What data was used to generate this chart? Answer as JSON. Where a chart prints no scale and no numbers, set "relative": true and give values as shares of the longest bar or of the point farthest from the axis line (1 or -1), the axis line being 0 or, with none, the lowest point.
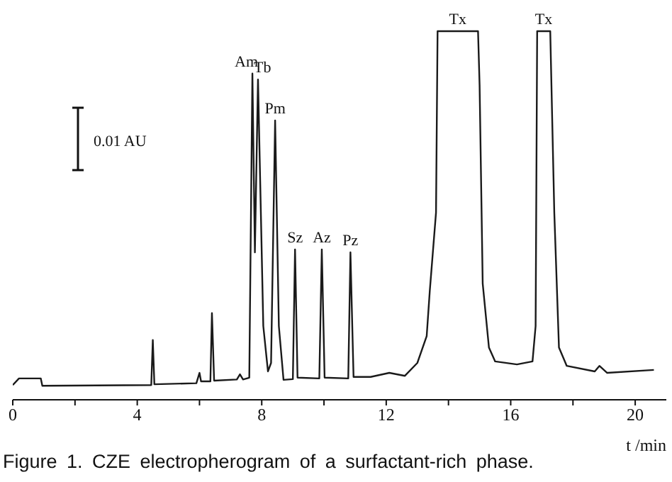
{
  "chart_data": {
    "type": "line",
    "relative": true,
    "title": "Figure 1.  CZE electropherogram of a surfactant-rich phase.",
    "xlabel": "t /min",
    "xlim": [
      0,
      21
    ],
    "xticks": [
      0,
      {
        "value": 2,
        "label": null
      },
      4,
      {
        "value": 6,
        "label": null
      },
      8,
      {
        "value": 10,
        "label": null
      },
      12,
      {
        "value": 14,
        "label": null
      },
      16,
      {
        "value": 18,
        "label": null
      },
      20
    ],
    "marker": "none",
    "x": [
      0,
      0.2,
      0.9,
      0.95,
      4.45,
      4.5,
      4.55,
      5.9,
      6.0,
      6.05,
      6.35,
      6.4,
      6.47,
      7.2,
      7.3,
      7.4,
      7.6,
      7.7,
      7.78,
      7.88,
      8.05,
      8.2,
      8.3,
      8.43,
      8.55,
      8.7,
      9.0,
      9.07,
      9.15,
      9.85,
      9.93,
      10.02,
      10.78,
      10.85,
      10.95,
      11.5,
      12.1,
      12.6,
      13.0,
      13.3,
      13.4,
      13.6,
      13.65,
      14.95,
      15.0,
      15.1,
      15.3,
      15.5,
      16.2,
      16.7,
      16.8,
      16.85,
      17.27,
      17.4,
      17.55,
      17.8,
      18.7,
      18.85,
      19.1,
      20.6
    ],
    "series": [
      {
        "color": "#1a1a1a",
        "values": [
          0.04,
          0.058,
          0.058,
          0.038,
          0.04,
          0.162,
          0.042,
          0.045,
          0.073,
          0.05,
          0.05,
          0.235,
          0.052,
          0.055,
          0.069,
          0.055,
          0.06,
          0.885,
          0.4,
          0.869,
          0.2,
          0.077,
          0.1,
          0.758,
          0.2,
          0.054,
          0.056,
          0.408,
          0.06,
          0.058,
          0.408,
          0.06,
          0.058,
          0.4,
          0.062,
          0.062,
          0.073,
          0.065,
          0.1,
          0.173,
          0.296,
          0.508,
          1,
          1,
          0.854,
          0.315,
          0.142,
          0.104,
          0.096,
          0.104,
          0.2,
          1,
          1,
          0.508,
          0.142,
          0.092,
          0.077,
          0.092,
          0.073,
          0.081
        ]
      }
    ],
    "annotations": [
      "0.01 AU",
      {
        "text": "Am",
        "x": 7.7,
        "y": 0.885
      },
      {
        "text": "Tb",
        "x": 7.88,
        "y": 0.869
      },
      {
        "text": "Pm",
        "x": 8.43,
        "y": 0.758
      },
      {
        "text": "Sz",
        "x": 9.07,
        "y": 0.408
      },
      {
        "text": "Az",
        "x": 9.93,
        "y": 0.408
      },
      {
        "text": "Pz",
        "x": 10.85,
        "y": 0.4
      },
      {
        "text": "Tx",
        "x": 14.3,
        "y": 1
      },
      {
        "text": "Tx",
        "x": 17.06,
        "y": 1
      }
    ]
  }
}
